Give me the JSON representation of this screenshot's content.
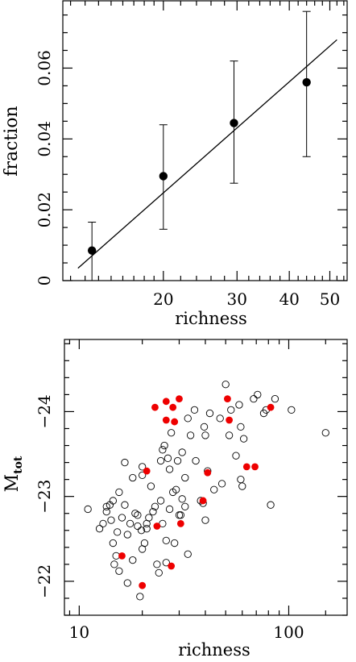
{
  "chart_data": [
    {
      "type": "scatter",
      "xlabel": "richness",
      "ylabel": "fraction",
      "x_scale": "log",
      "xlim": [
        11.5,
        55
      ],
      "ylim": [
        0,
        0.079
      ],
      "x_ticks": [
        20,
        30,
        40,
        50
      ],
      "y_ticks": [
        0,
        0.02,
        0.04,
        0.06
      ],
      "y_tick_labels": [
        "0",
        "0.02",
        "0.04",
        "0.06"
      ],
      "grid": false,
      "points": [
        {
          "x": 13.5,
          "y": 0.0085,
          "err_lo": 0.0085,
          "err_hi": 0.008
        },
        {
          "x": 20.0,
          "y": 0.0295,
          "err_lo": 0.015,
          "err_hi": 0.0145
        },
        {
          "x": 29.5,
          "y": 0.0445,
          "err_lo": 0.017,
          "err_hi": 0.0175
        },
        {
          "x": 44.0,
          "y": 0.056,
          "err_lo": 0.021,
          "err_hi": 0.02
        }
      ],
      "fit_line": {
        "x": [
          12.5,
          52.0
        ],
        "y": [
          0.0035,
          0.068
        ]
      }
    },
    {
      "type": "scatter",
      "xlabel": "richness",
      "ylabel": "M",
      "ylabel_sub": "tot",
      "x_scale": "log",
      "xlim": [
        8.5,
        190
      ],
      "ylim": [
        -21.6,
        -24.85
      ],
      "x_ticks": [
        10,
        100
      ],
      "x_tick_labels": [
        "10",
        "100"
      ],
      "y_ticks": [
        -22,
        -23,
        -24
      ],
      "y_tick_labels": [
        "−22",
        "−23",
        "−24"
      ],
      "grid": false,
      "series": [
        {
          "marker": "open-circle",
          "color": "#000000",
          "points": [
            [
              11,
              -22.85
            ],
            [
              12.5,
              -22.62
            ],
            [
              13,
              -22.68
            ],
            [
              13.5,
              -22.88
            ],
            [
              13.5,
              -22.82
            ],
            [
              14,
              -22.9
            ],
            [
              14.2,
              -22.72
            ],
            [
              14.5,
              -22.95
            ],
            [
              14.5,
              -22.45
            ],
            [
              14.7,
              -22.2
            ],
            [
              15,
              -22.3
            ],
            [
              15.2,
              -22.58
            ],
            [
              15.5,
              -23.05
            ],
            [
              15.5,
              -22.12
            ],
            [
              16,
              -22.75
            ],
            [
              16.5,
              -22.9
            ],
            [
              16.5,
              -23.4
            ],
            [
              17,
              -22.55
            ],
            [
              17,
              -21.98
            ],
            [
              17.5,
              -22.68
            ],
            [
              18,
              -22.25
            ],
            [
              18,
              -23.22
            ],
            [
              18.5,
              -22.8
            ],
            [
              19,
              -22.78
            ],
            [
              19,
              -22.65
            ],
            [
              19.5,
              -21.82
            ],
            [
              19.8,
              -22.6
            ],
            [
              20,
              -23.25
            ],
            [
              20,
              -23.35
            ],
            [
              20,
              -22.38
            ],
            [
              20.5,
              -22.45
            ],
            [
              21,
              -22.62
            ],
            [
              21,
              -22.68
            ],
            [
              21.5,
              -22.75
            ],
            [
              22,
              -23.12
            ],
            [
              22.5,
              -22.82
            ],
            [
              23,
              -22.88
            ],
            [
              23.5,
              -22.2
            ],
            [
              24,
              -22.1
            ],
            [
              24.5,
              -22.95
            ],
            [
              24.5,
              -23.42
            ],
            [
              25,
              -23.55
            ],
            [
              25,
              -22.68
            ],
            [
              25.5,
              -23.6
            ],
            [
              26,
              -22.22
            ],
            [
              26,
              -22.48
            ],
            [
              26.5,
              -23.45
            ],
            [
              27,
              -23.32
            ],
            [
              27,
              -22.85
            ],
            [
              27.5,
              -23.75
            ],
            [
              28,
              -23.05
            ],
            [
              28.5,
              -22.45
            ],
            [
              29,
              -23.08
            ],
            [
              29.5,
              -23.42
            ],
            [
              30,
              -22.78
            ],
            [
              30.5,
              -22.78
            ],
            [
              31,
              -23.52
            ],
            [
              31,
              -22.97
            ],
            [
              32,
              -23.22
            ],
            [
              32,
              -22.88
            ],
            [
              33,
              -22.32
            ],
            [
              33,
              -23.92
            ],
            [
              34,
              -23.72
            ],
            [
              35.5,
              -24.02
            ],
            [
              36,
              -23.42
            ],
            [
              38,
              -22.95
            ],
            [
              39,
              -22.92
            ],
            [
              39.5,
              -23.82
            ],
            [
              40,
              -23.72
            ],
            [
              40,
              -22.72
            ],
            [
              41,
              -23.3
            ],
            [
              42,
              -23.98
            ],
            [
              44,
              -23.08
            ],
            [
              47,
              -23.92
            ],
            [
              48,
              -23.15
            ],
            [
              50,
              -24.32
            ],
            [
              52,
              -23.72
            ],
            [
              53,
              -24.02
            ],
            [
              56,
              -23.48
            ],
            [
              58,
              -24.08
            ],
            [
              59,
              -23.82
            ],
            [
              59,
              -23.2
            ],
            [
              60,
              -23.12
            ],
            [
              61,
              -23.68
            ],
            [
              68,
              -24.15
            ],
            [
              71,
              -24.2
            ],
            [
              76,
              -23.98
            ],
            [
              78,
              -24.02
            ],
            [
              82,
              -22.9
            ],
            [
              86,
              -24.15
            ],
            [
              103,
              -24.02
            ],
            [
              150,
              -23.75
            ]
          ]
        },
        {
          "marker": "filled-circle",
          "color": "#ee0000",
          "points": [
            [
              16,
              -22.3
            ],
            [
              20,
              -21.95
            ],
            [
              21,
              -23.3
            ],
            [
              23,
              -24.05
            ],
            [
              23.5,
              -22.65
            ],
            [
              26,
              -24.12
            ],
            [
              26,
              -23.9
            ],
            [
              27.5,
              -22.18
            ],
            [
              28,
              -24.05
            ],
            [
              28.5,
              -23.88
            ],
            [
              30,
              -24.15
            ],
            [
              30.5,
              -22.68
            ],
            [
              39,
              -22.95
            ],
            [
              41,
              -23.28
            ],
            [
              51,
              -24.15
            ],
            [
              52,
              -23.9
            ],
            [
              63,
              -23.35
            ],
            [
              69,
              -23.35
            ],
            [
              82,
              -24.05
            ]
          ]
        }
      ]
    }
  ]
}
